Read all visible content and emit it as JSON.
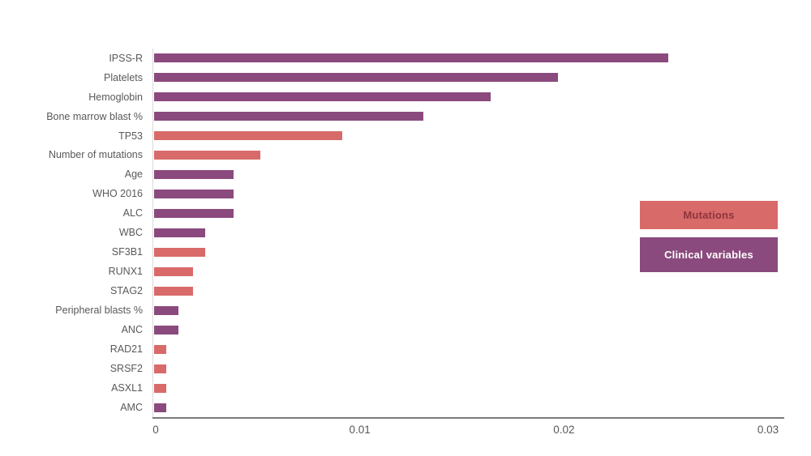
{
  "chart_data": {
    "type": "bar",
    "orientation": "horizontal",
    "title": "",
    "xlabel": "",
    "ylabel": "",
    "grid": false,
    "categories": [
      "IPSS-R",
      "Platelets",
      "Hemoglobin",
      "Bone marrow blast %",
      "TP53",
      "Number of mutations",
      "Age",
      "WHO 2016",
      "ALC",
      "WBC",
      "SF3B1",
      "RUNX1",
      "STAG2",
      "Peripheral blasts %",
      "ANC",
      "RAD21",
      "SRSF2",
      "ASXL1",
      "AMC"
    ],
    "values": [
      0.0252,
      0.0198,
      0.0165,
      0.0132,
      0.0092,
      0.0052,
      0.0039,
      0.0039,
      0.0039,
      0.0025,
      0.0025,
      0.0019,
      0.0019,
      0.0012,
      0.0012,
      0.0006,
      0.0006,
      0.0006,
      0.0006
    ],
    "groups": [
      "clinical",
      "clinical",
      "clinical",
      "clinical",
      "mutation",
      "mutation",
      "clinical",
      "clinical",
      "clinical",
      "clinical",
      "mutation",
      "mutation",
      "mutation",
      "clinical",
      "clinical",
      "mutation",
      "mutation",
      "mutation",
      "clinical"
    ],
    "colors": {
      "mutation": "#d96a6a",
      "clinical": "#8b4a7d"
    },
    "xlim": [
      0,
      0.03
    ],
    "xticks": [
      0,
      0.01,
      0.02,
      0.03
    ],
    "xtick_labels": [
      "0",
      "0.01",
      "0.02",
      "0.03"
    ],
    "legend_position": "right",
    "legend": [
      {
        "label": "Mutations",
        "color": "#d96a6a",
        "text_color": "#8f343c"
      },
      {
        "label": "Clinical variables",
        "color": "#8b4a7d",
        "text_color": "#ffffff"
      }
    ]
  }
}
